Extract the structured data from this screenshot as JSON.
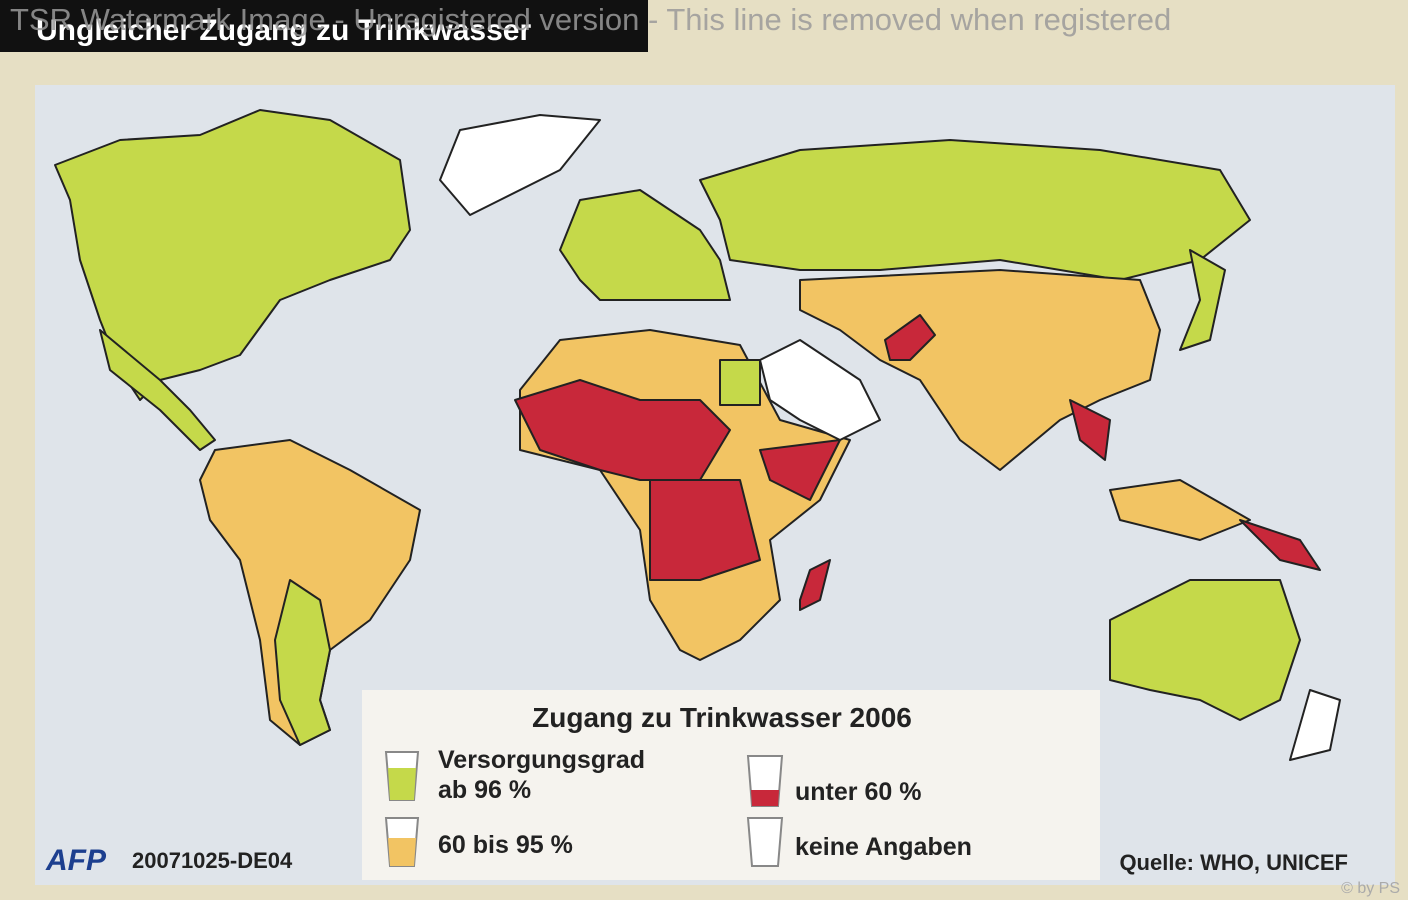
{
  "watermark": "TSR Watermark Image - Unregistered version - This line is removed when registered",
  "header": {
    "title": "Ungleicher Zugang zu Trinkwasser"
  },
  "legend": {
    "title": "Zugang zu Trinkwasser 2006",
    "items": [
      {
        "label_lines": [
          "Versorgungsgrad",
          "ab 96 %"
        ]
      },
      {
        "label_lines": [
          "60 bis 95 %"
        ]
      },
      {
        "label_lines": [
          "unter 60 %"
        ]
      },
      {
        "label_lines": [
          "keine Angaben"
        ]
      }
    ]
  },
  "footer": {
    "logo": "AFP",
    "code": "20071025-DE04",
    "source": "Quelle: WHO, UNICEF",
    "copyright": "© by PS"
  }
}
